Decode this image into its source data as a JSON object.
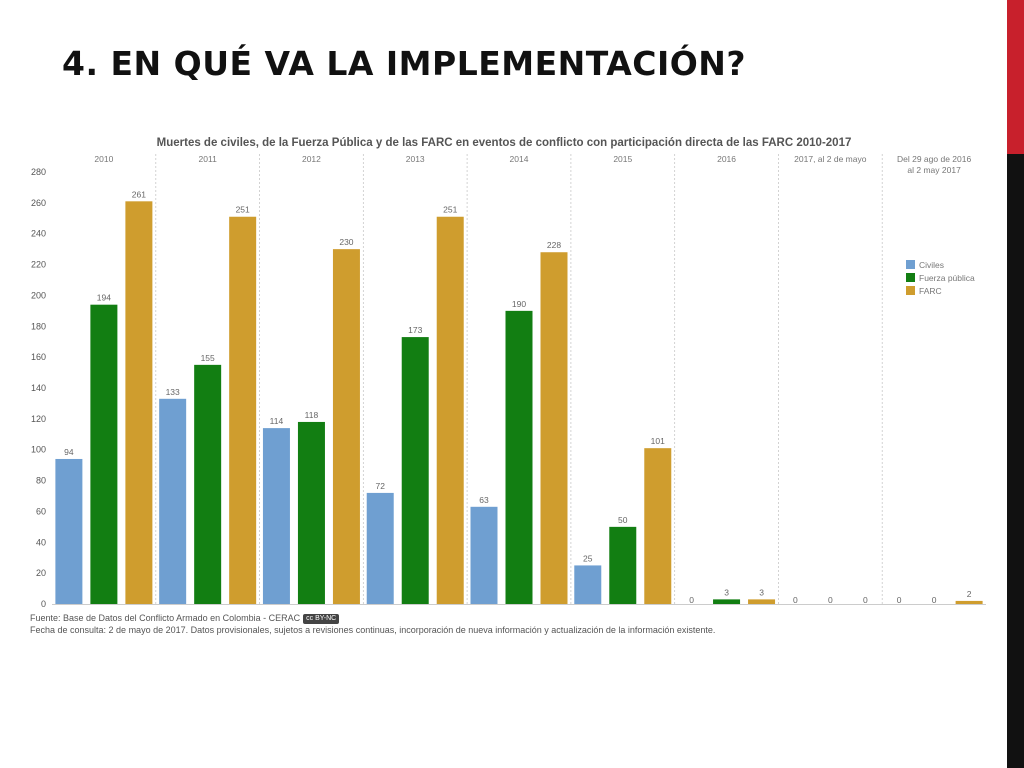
{
  "slide": {
    "title": "4. EN QUÉ VA LA IMPLEMENTACIÓN?"
  },
  "accent": {
    "red": "#c8202c",
    "black": "#111111"
  },
  "source": {
    "line1": "Fuente: Base de Datos del Conflicto Armado en Colombia - CERAC",
    "badge": "cc BY-NC",
    "line2": "Fecha de consulta: 2 de mayo de 2017. Datos provisionales, sujetos a revisiones continuas, incorporación de nueva información y actualización de la información existente."
  },
  "chart_data": {
    "type": "bar",
    "title": "Muertes de civiles, de la Fuerza Pública y de las FARC en eventos de conflicto con participación directa de las FARC 2010-2017",
    "categories": [
      "2010",
      "2011",
      "2012",
      "2013",
      "2014",
      "2015",
      "2016",
      "2017, al 2 de mayo",
      "Del 29 ago de 2016 al 2 may 2017"
    ],
    "series": [
      {
        "name": "Civiles",
        "color": "#6f9fd1",
        "values": [
          94,
          133,
          114,
          72,
          63,
          25,
          0,
          0,
          0
        ]
      },
      {
        "name": "Fuerza pública",
        "color": "#127e12",
        "values": [
          194,
          155,
          118,
          173,
          190,
          50,
          3,
          0,
          0
        ]
      },
      {
        "name": "FARC",
        "color": "#cf9d2e",
        "values": [
          261,
          251,
          230,
          251,
          228,
          101,
          3,
          0,
          2
        ]
      }
    ],
    "ylim": [
      0,
      280
    ],
    "yticks": [
      0,
      20,
      40,
      60,
      80,
      100,
      120,
      140,
      160,
      180,
      200,
      220,
      240,
      260,
      280
    ],
    "legend_position": "right",
    "grid": false
  }
}
